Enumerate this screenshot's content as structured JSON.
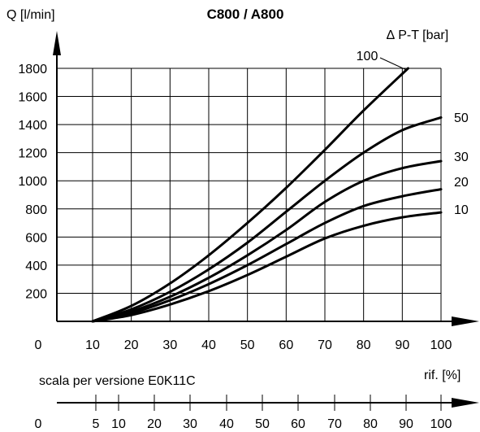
{
  "chart_data": {
    "type": "line",
    "title": "C800 / A800",
    "ylabel": "Q [l/min]",
    "xlabel": "rif. [%]",
    "legend_title": "∆ P-T [bar]",
    "origin_label": "0",
    "xlim": [
      10,
      100
    ],
    "ylim": [
      0,
      1800
    ],
    "grid": true,
    "x_ticks": [
      "10",
      "20",
      "30",
      "40",
      "50",
      "60",
      "70",
      "80",
      "90",
      "100"
    ],
    "y_ticks": [
      "200",
      "400",
      "600",
      "800",
      "1000",
      "1200",
      "1400",
      "1600",
      "1800"
    ],
    "series": [
      {
        "name": "100",
        "x": [
          10,
          20,
          30,
          40,
          50,
          60,
          70,
          80,
          91.5
        ],
        "y": [
          0,
          110,
          270,
          470,
          700,
          950,
          1220,
          1500,
          1800
        ]
      },
      {
        "name": "50",
        "x": [
          10,
          20,
          30,
          40,
          50,
          60,
          70,
          80,
          90,
          100
        ],
        "y": [
          0,
          85,
          210,
          370,
          560,
          780,
          1000,
          1200,
          1360,
          1450
        ]
      },
      {
        "name": "30",
        "x": [
          10,
          20,
          30,
          40,
          50,
          60,
          70,
          80,
          90,
          100
        ],
        "y": [
          0,
          70,
          175,
          310,
          470,
          650,
          850,
          1000,
          1090,
          1140
        ]
      },
      {
        "name": "20",
        "x": [
          10,
          20,
          30,
          40,
          50,
          60,
          70,
          80,
          90,
          100
        ],
        "y": [
          0,
          58,
          150,
          265,
          400,
          550,
          700,
          820,
          890,
          940
        ]
      },
      {
        "name": "10",
        "x": [
          10,
          20,
          30,
          40,
          50,
          60,
          70,
          80,
          90,
          100
        ],
        "y": [
          0,
          45,
          120,
          215,
          330,
          460,
          590,
          680,
          740,
          775
        ]
      }
    ],
    "secondary_axis": {
      "label": "scala per versione E0K11C",
      "origin_label": "0",
      "ticks": [
        "5",
        "10",
        "20",
        "30",
        "40",
        "50",
        "60",
        "70",
        "80",
        "90",
        "100"
      ]
    }
  }
}
